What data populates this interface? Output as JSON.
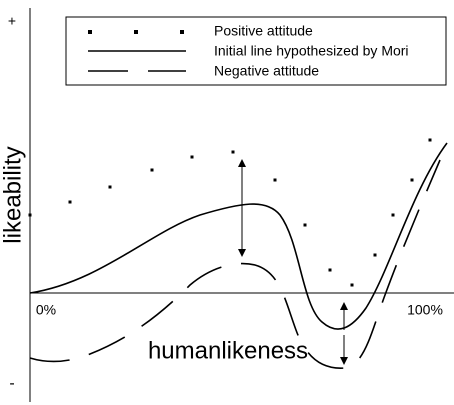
{
  "axes": {
    "y_max": "+",
    "y_min": "-",
    "y_label": "likeability",
    "x_label": "humanlikeness",
    "x_start": "0%",
    "x_end": "100%"
  },
  "legend": {
    "items": [
      "Positive attitude",
      "Initial line hypothesized by Mori",
      "Negative attitude"
    ]
  }
}
